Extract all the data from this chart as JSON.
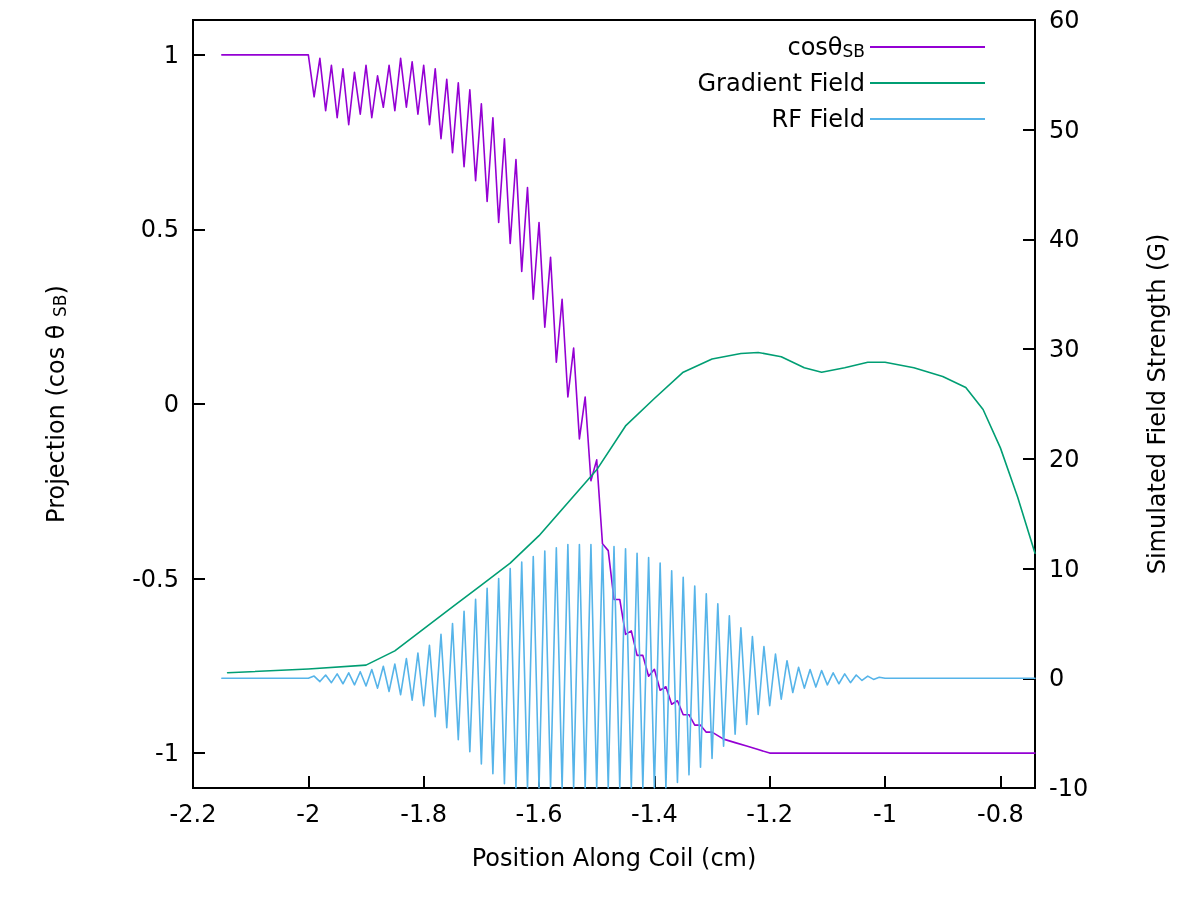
{
  "chart_data": {
    "type": "line",
    "xlabel": "Position Along Coil (cm)",
    "ylabel": "Projection (cos θ $_{SB}$)",
    "y2label": "Simulated Field Strength (G)",
    "xlim": [
      -2.2,
      -0.74
    ],
    "xticks": [
      -2.2,
      -2,
      -1.8,
      -1.6,
      -1.4,
      -1.2,
      -1,
      -0.8
    ],
    "ylim": [
      -1.1,
      1.1
    ],
    "yticks": [
      -1,
      -0.5,
      0,
      0.5,
      1
    ],
    "y2lim": [
      -10,
      60
    ],
    "y2ticks": [
      -10,
      0,
      10,
      20,
      30,
      40,
      50,
      60
    ],
    "grid": false,
    "legend": "top right",
    "marker": "none",
    "line_style": "solid",
    "series": [
      {
        "name": "cosθ$_{SB}$",
        "color": "#9400d3",
        "x": [
          -2.15,
          -2.0,
          -1.99,
          -1.98,
          -1.97,
          -1.96,
          -1.95,
          -1.94,
          -1.93,
          -1.92,
          -1.91,
          -1.9,
          -1.89,
          -1.88,
          -1.87,
          -1.86,
          -1.85,
          -1.84,
          -1.83,
          -1.82,
          -1.81,
          -1.8,
          -1.79,
          -1.78,
          -1.77,
          -1.76,
          -1.75,
          -1.74,
          -1.73,
          -1.72,
          -1.71,
          -1.7,
          -1.69,
          -1.68,
          -1.67,
          -1.66,
          -1.65,
          -1.64,
          -1.63,
          -1.62,
          -1.61,
          -1.6,
          -1.59,
          -1.58,
          -1.57,
          -1.56,
          -1.55,
          -1.54,
          -1.53,
          -1.52,
          -1.51,
          -1.5,
          -1.49,
          -1.48,
          -1.47,
          -1.46,
          -1.45,
          -1.44,
          -1.43,
          -1.42,
          -1.41,
          -1.4,
          -1.39,
          -1.38,
          -1.37,
          -1.36,
          -1.35,
          -1.34,
          -1.33,
          -1.32,
          -1.31,
          -1.3,
          -1.28,
          -1.26,
          -1.24,
          -1.22,
          -1.2,
          -0.74
        ],
        "values": [
          1,
          1,
          0.88,
          0.99,
          0.84,
          0.97,
          0.82,
          0.96,
          0.8,
          0.95,
          0.83,
          0.97,
          0.82,
          0.94,
          0.85,
          0.97,
          0.84,
          0.99,
          0.85,
          0.98,
          0.83,
          0.97,
          0.8,
          0.96,
          0.76,
          0.93,
          0.72,
          0.92,
          0.68,
          0.9,
          0.64,
          0.86,
          0.58,
          0.82,
          0.52,
          0.76,
          0.46,
          0.7,
          0.38,
          0.62,
          0.3,
          0.52,
          0.22,
          0.42,
          0.12,
          0.3,
          0.02,
          0.16,
          -0.1,
          0.02,
          -0.22,
          -0.16,
          -0.4,
          -0.42,
          -0.56,
          -0.56,
          -0.66,
          -0.65,
          -0.72,
          -0.72,
          -0.78,
          -0.76,
          -0.82,
          -0.81,
          -0.86,
          -0.85,
          -0.89,
          -0.89,
          -0.92,
          -0.92,
          -0.94,
          -0.94,
          -0.96,
          -0.97,
          -0.98,
          -0.99,
          -1,
          -1
        ]
      },
      {
        "name": "Gradient Field",
        "color": "#009e73",
        "axis": "y2",
        "x": [
          -2.14,
          -2.0,
          -1.9,
          -1.85,
          -1.8,
          -1.75,
          -1.7,
          -1.65,
          -1.6,
          -1.55,
          -1.5,
          -1.45,
          -1.4,
          -1.35,
          -1.3,
          -1.25,
          -1.22,
          -1.18,
          -1.14,
          -1.11,
          -1.07,
          -1.03,
          -1.0,
          -0.95,
          -0.9,
          -0.86,
          -0.83,
          -0.8,
          -0.77,
          -0.74
        ],
        "values": [
          0.5,
          0.85,
          1.2,
          2.5,
          4.5,
          6.5,
          8.5,
          10.5,
          13,
          16,
          19,
          23,
          25.5,
          27.9,
          29.1,
          29.6,
          29.7,
          29.3,
          28.3,
          27.9,
          28.3,
          28.8,
          28.8,
          28.3,
          27.5,
          26.5,
          24.5,
          21,
          16.5,
          11.4
        ]
      },
      {
        "name": "RF Field",
        "color": "#56b4e9",
        "axis": "y2",
        "x": [
          -2.15,
          -2.0,
          -1.99,
          -1.98,
          -1.97,
          -1.96,
          -1.95,
          -1.94,
          -1.93,
          -1.92,
          -1.91,
          -1.9,
          -1.89,
          -1.88,
          -1.87,
          -1.86,
          -1.85,
          -1.84,
          -1.83,
          -1.82,
          -1.81,
          -1.8,
          -1.79,
          -1.78,
          -1.77,
          -1.76,
          -1.75,
          -1.74,
          -1.73,
          -1.72,
          -1.71,
          -1.7,
          -1.69,
          -1.68,
          -1.67,
          -1.66,
          -1.65,
          -1.64,
          -1.63,
          -1.62,
          -1.61,
          -1.6,
          -1.59,
          -1.58,
          -1.57,
          -1.56,
          -1.55,
          -1.54,
          -1.53,
          -1.52,
          -1.51,
          -1.5,
          -1.49,
          -1.48,
          -1.47,
          -1.46,
          -1.45,
          -1.44,
          -1.43,
          -1.42,
          -1.41,
          -1.4,
          -1.39,
          -1.38,
          -1.37,
          -1.36,
          -1.35,
          -1.34,
          -1.33,
          -1.32,
          -1.31,
          -1.3,
          -1.29,
          -1.28,
          -1.27,
          -1.26,
          -1.25,
          -1.24,
          -1.23,
          -1.22,
          -1.21,
          -1.2,
          -1.19,
          -1.18,
          -1.17,
          -1.16,
          -1.15,
          -1.14,
          -1.13,
          -1.12,
          -1.11,
          -1.1,
          -1.09,
          -1.08,
          -1.07,
          -1.06,
          -1.05,
          -1.04,
          -1.03,
          -1.02,
          -1.01,
          -1.0,
          -0.74
        ],
        "values": [
          0,
          0,
          0.2,
          -0.3,
          0.3,
          -0.4,
          0.4,
          -0.5,
          0.5,
          -0.6,
          0.6,
          -0.7,
          0.8,
          -0.9,
          1.1,
          -1.2,
          1.3,
          -1.5,
          1.8,
          -2.0,
          2.3,
          -2.5,
          3.0,
          -3.5,
          4.0,
          -4.5,
          5.0,
          -5.6,
          6.1,
          -6.7,
          7.2,
          -7.8,
          8.2,
          -8.7,
          9.1,
          -9.6,
          10.0,
          -10,
          10.6,
          -10,
          11.1,
          -10,
          11.6,
          -10,
          11.9,
          -10,
          12.2,
          -10,
          12.2,
          -10,
          12.2,
          -10,
          12.1,
          -10,
          12.0,
          -10,
          11.8,
          -10,
          11.4,
          -10,
          11.0,
          -10,
          10.5,
          -10,
          9.8,
          -9.5,
          9.2,
          -8.8,
          8.4,
          -8.1,
          7.7,
          -7.3,
          6.8,
          -6.2,
          5.7,
          -5.1,
          4.6,
          -4.2,
          3.8,
          -3.3,
          2.9,
          -2.5,
          2.2,
          -1.9,
          1.6,
          -1.3,
          1.0,
          -0.9,
          0.8,
          -0.8,
          0.7,
          -0.6,
          0.5,
          -0.5,
          0.4,
          -0.4,
          0.3,
          -0.2,
          0.2,
          -0.1,
          0.1,
          0,
          0
        ]
      }
    ]
  }
}
